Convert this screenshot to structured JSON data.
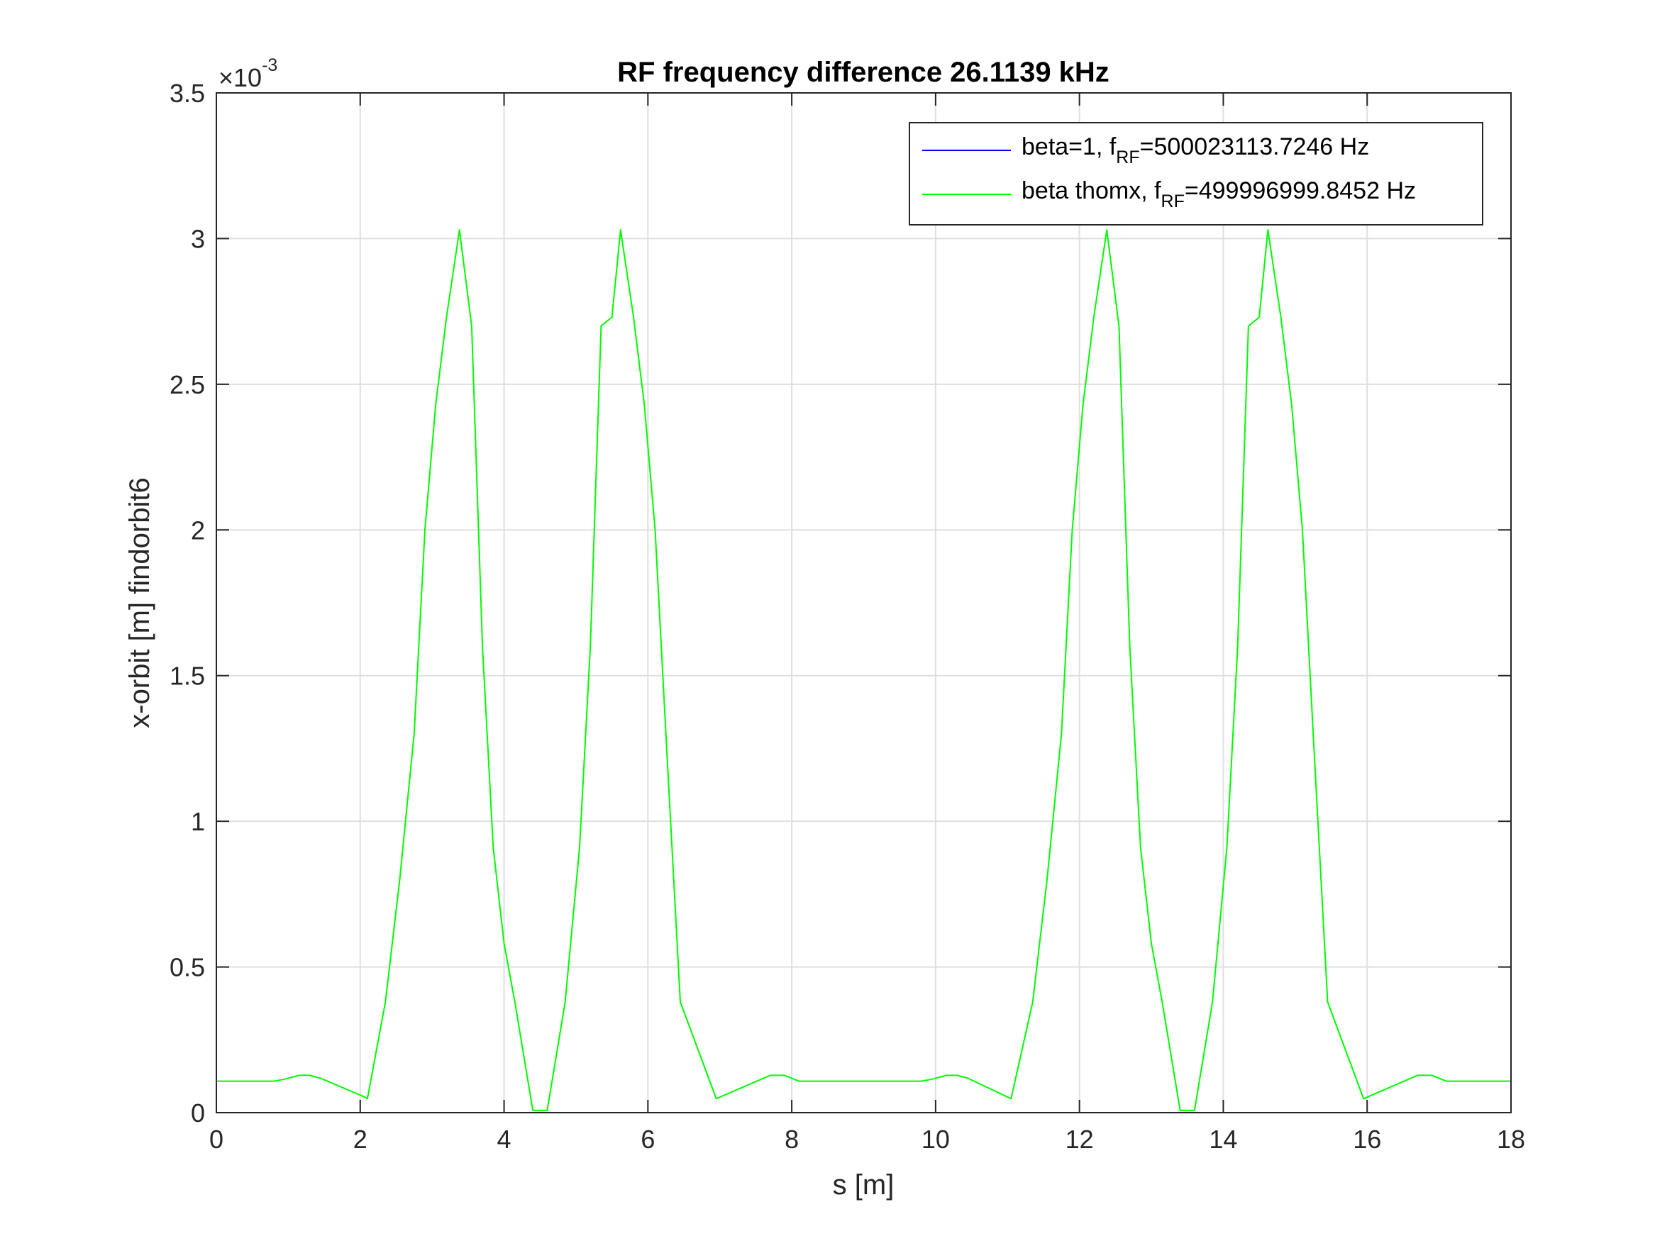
{
  "chart_data": {
    "type": "line",
    "title": "RF frequency difference 26.1139 kHz",
    "xlabel": "s [m]",
    "ylabel": "x-orbit [m] findorbit6",
    "y_exponent_label": {
      "prefix": "×10",
      "exponent": "-3"
    },
    "xlim": [
      0,
      18
    ],
    "ylim": [
      0,
      0.0035
    ],
    "xticks": [
      0,
      2,
      4,
      6,
      8,
      10,
      12,
      14,
      16,
      18
    ],
    "xtick_labels": [
      "0",
      "2",
      "4",
      "6",
      "8",
      "10",
      "12",
      "14",
      "16",
      "18"
    ],
    "yticks": [
      0,
      0.0005,
      0.001,
      0.0015,
      0.002,
      0.0025,
      0.003,
      0.0035
    ],
    "ytick_labels": [
      "0",
      "0.5",
      "1",
      "1.5",
      "2",
      "2.5",
      "3",
      "3.5"
    ],
    "grid": true,
    "legend_position": "top-right",
    "series": [
      {
        "name": "beta=1, f",
        "name_sub": "RF",
        "name_tail": "=500023113.7246 Hz",
        "color": "#0000ff",
        "x": [
          0,
          18
        ],
        "y": [
          0,
          0
        ]
      },
      {
        "name": "beta thomx, f",
        "name_sub": "RF",
        "name_tail": "=499996999.8452 Hz",
        "color": "#00ff00",
        "x": [
          0,
          0.8,
          0.95,
          1.15,
          1.3,
          1.45,
          2.05,
          2.1,
          2.35,
          2.55,
          2.75,
          2.9,
          3.05,
          3.2,
          3.38,
          3.55,
          3.7,
          3.85,
          4.0,
          4.15,
          4.4,
          4.55,
          4.6,
          4.85,
          5.05,
          5.2,
          5.35,
          5.5,
          5.62,
          5.8,
          5.95,
          6.1,
          6.25,
          6.45,
          6.95,
          7.7,
          7.9,
          8.1,
          9.8,
          9.95,
          10.15,
          10.3,
          10.45,
          11.05,
          11.35,
          11.55,
          11.75,
          11.9,
          12.05,
          12.2,
          12.38,
          12.55,
          12.7,
          12.85,
          13.0,
          13.15,
          13.4,
          13.55,
          13.6,
          13.85,
          14.05,
          14.2,
          14.35,
          14.5,
          14.62,
          14.8,
          14.95,
          15.1,
          15.25,
          15.45,
          15.95,
          16.7,
          16.9,
          17.1,
          18
        ],
        "y": [
          0.000108,
          0.000108,
          0.000115,
          0.000128,
          0.000128,
          0.000118,
          5.5e-05,
          4.8e-05,
          0.00038,
          0.0008,
          0.0013,
          0.002,
          0.00243,
          0.00273,
          0.00303,
          0.0027,
          0.0016,
          0.00091,
          0.00058,
          0.00038,
          8e-06,
          8e-06,
          8e-06,
          0.00038,
          0.00091,
          0.0016,
          0.0027,
          0.00273,
          0.00303,
          0.00273,
          0.00243,
          0.002,
          0.0013,
          0.00038,
          4.8e-05,
          0.000128,
          0.000128,
          0.000108,
          0.000108,
          0.000115,
          0.000128,
          0.000128,
          0.000118,
          4.8e-05,
          0.00038,
          0.0008,
          0.0013,
          0.002,
          0.00243,
          0.00273,
          0.00303,
          0.0027,
          0.0016,
          0.00091,
          0.00058,
          0.00038,
          8e-06,
          8e-06,
          8e-06,
          0.00038,
          0.00091,
          0.0016,
          0.0027,
          0.00273,
          0.00303,
          0.00273,
          0.00243,
          0.002,
          0.0013,
          0.00038,
          4.8e-05,
          0.000128,
          0.000128,
          0.000108,
          0.000108
        ]
      }
    ]
  }
}
